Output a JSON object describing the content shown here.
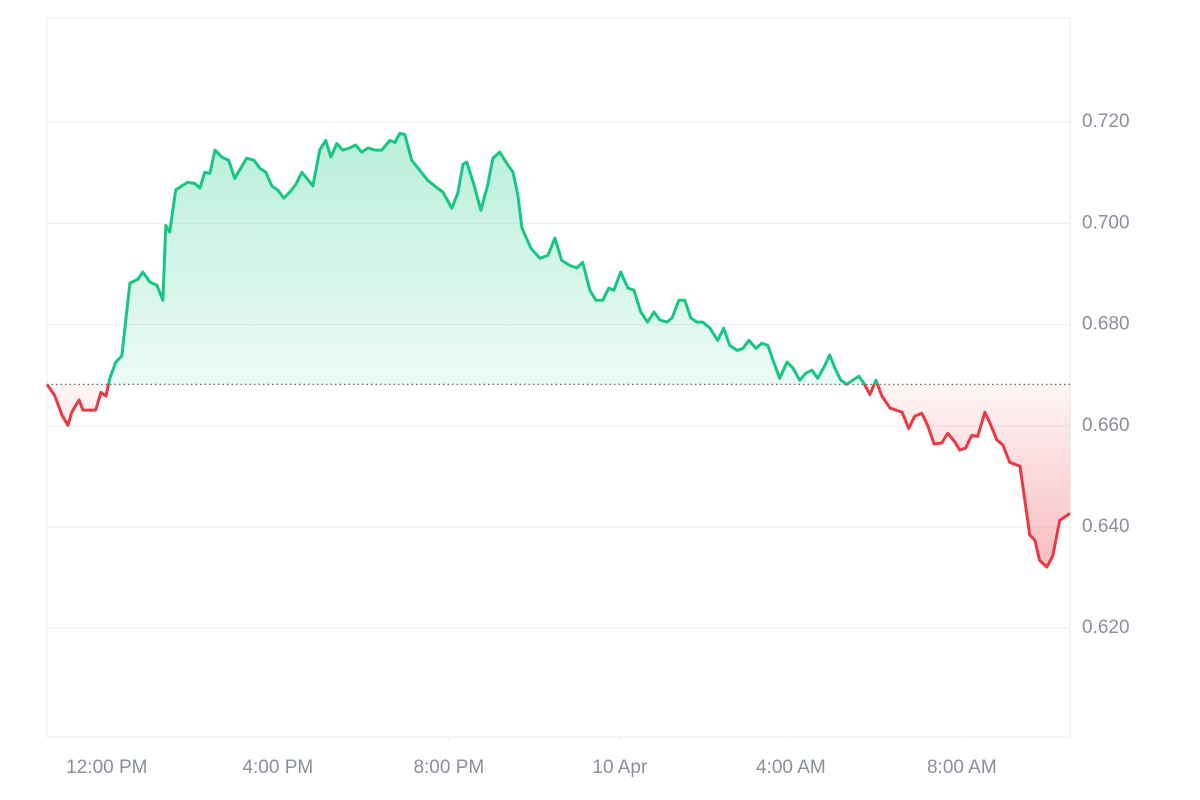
{
  "chart_data": {
    "type": "line",
    "x": [
      10.6,
      10.78,
      10.95,
      11.09,
      11.18,
      11.35,
      11.44,
      11.6,
      11.74,
      11.86,
      11.98,
      12.07,
      12.21,
      12.35,
      12.54,
      12.73,
      12.84,
      13.01,
      13.17,
      13.31,
      13.38,
      13.47,
      13.61,
      13.75,
      13.89,
      14.06,
      14.18,
      14.29,
      14.41,
      14.53,
      14.69,
      14.85,
      14.99,
      15.13,
      15.27,
      15.44,
      15.58,
      15.72,
      15.86,
      16.0,
      16.14,
      16.28,
      16.42,
      16.56,
      16.68,
      16.82,
      16.98,
      17.12,
      17.24,
      17.38,
      17.52,
      17.68,
      17.82,
      17.96,
      18.11,
      18.27,
      18.43,
      18.62,
      18.74,
      18.85,
      18.97,
      19.13,
      19.32,
      19.51,
      19.7,
      19.86,
      20.07,
      20.21,
      20.33,
      20.42,
      20.58,
      20.75,
      20.91,
      21.03,
      21.19,
      21.31,
      21.5,
      21.61,
      21.71,
      21.92,
      22.13,
      22.32,
      22.48,
      22.64,
      22.83,
      22.99,
      23.13,
      23.3,
      23.44,
      23.6,
      23.74,
      23.86,
      24.02,
      24.19,
      24.33,
      24.49,
      24.65,
      24.8,
      24.94,
      25.1,
      25.22,
      25.38,
      25.52,
      25.66,
      25.8,
      25.94,
      26.11,
      26.29,
      26.43,
      26.57,
      26.74,
      26.88,
      27.02,
      27.18,
      27.32,
      27.46,
      27.6,
      27.74,
      27.91,
      28.05,
      28.21,
      28.35,
      28.49,
      28.63,
      28.8,
      28.91,
      29.03,
      29.17,
      29.31,
      29.45,
      29.59,
      29.71,
      29.85,
      29.99,
      30.13,
      30.32,
      30.46,
      30.6,
      30.76,
      30.9,
      31.06,
      31.2,
      31.35,
      31.53,
      31.67,
      31.84,
      31.95,
      32.09,
      32.23,
      32.37,
      32.54,
      32.68,
      32.82,
      32.96,
      33.12,
      33.36,
      33.59,
      33.71,
      33.82,
      33.99,
      34.13,
      34.29,
      34.43,
      34.53
    ],
    "values": [
      0.6682,
      0.666,
      0.6621,
      0.6601,
      0.6627,
      0.6651,
      0.6631,
      0.6631,
      0.6631,
      0.6666,
      0.6659,
      0.6694,
      0.6726,
      0.6738,
      0.6882,
      0.689,
      0.6904,
      0.6884,
      0.6878,
      0.6848,
      0.6996,
      0.6983,
      0.7066,
      0.7074,
      0.7081,
      0.7079,
      0.707,
      0.7101,
      0.7099,
      0.7145,
      0.7131,
      0.7125,
      0.7089,
      0.7109,
      0.7129,
      0.7125,
      0.7109,
      0.7101,
      0.7074,
      0.7066,
      0.705,
      0.7062,
      0.7077,
      0.7101,
      0.7089,
      0.7074,
      0.7145,
      0.7164,
      0.7131,
      0.7158,
      0.7145,
      0.7149,
      0.7155,
      0.7141,
      0.7149,
      0.7145,
      0.7145,
      0.7164,
      0.716,
      0.7178,
      0.7176,
      0.7125,
      0.7105,
      0.7085,
      0.7072,
      0.7062,
      0.703,
      0.706,
      0.7117,
      0.7121,
      0.7079,
      0.7026,
      0.7076,
      0.7129,
      0.7141,
      0.7125,
      0.7101,
      0.7058,
      0.6991,
      0.6951,
      0.6931,
      0.6937,
      0.6971,
      0.6927,
      0.6917,
      0.6912,
      0.6923,
      0.6868,
      0.6848,
      0.6848,
      0.6872,
      0.6868,
      0.6904,
      0.6872,
      0.6868,
      0.6825,
      0.6805,
      0.6825,
      0.6809,
      0.6805,
      0.6813,
      0.6848,
      0.6848,
      0.6813,
      0.6805,
      0.6805,
      0.6793,
      0.6769,
      0.6793,
      0.6759,
      0.6749,
      0.6753,
      0.6769,
      0.6753,
      0.6763,
      0.6759,
      0.6726,
      0.6694,
      0.6726,
      0.6714,
      0.669,
      0.6704,
      0.671,
      0.6694,
      0.672,
      0.674,
      0.6714,
      0.669,
      0.6682,
      0.669,
      0.6698,
      0.6684,
      0.6662,
      0.669,
      0.6659,
      0.6635,
      0.6631,
      0.6627,
      0.6595,
      0.6619,
      0.6625,
      0.6601,
      0.6564,
      0.6566,
      0.6585,
      0.6568,
      0.6552,
      0.6556,
      0.6581,
      0.6579,
      0.6627,
      0.6601,
      0.6572,
      0.6562,
      0.6528,
      0.652,
      0.6384,
      0.6374,
      0.6334,
      0.6321,
      0.6344,
      0.6413,
      0.6421,
      0.6427
    ],
    "baseline": 0.6682,
    "up_color": "#16c784",
    "down_color": "#ea3943",
    "xlim": [
      10.6,
      34.53
    ],
    "xticks": [
      {
        "value": 12,
        "label": "12:00 PM"
      },
      {
        "value": 16,
        "label": "4:00 PM"
      },
      {
        "value": 20,
        "label": "8:00 PM"
      },
      {
        "value": 24,
        "label": "10 Apr"
      },
      {
        "value": 28,
        "label": "4:00 AM"
      },
      {
        "value": 32,
        "label": "8:00 AM"
      }
    ],
    "ylim": [
      0.5985,
      0.7406
    ],
    "yticks": [
      {
        "value": 0.62,
        "label": "0.620"
      },
      {
        "value": 0.64,
        "label": "0.640"
      },
      {
        "value": 0.66,
        "label": "0.660"
      },
      {
        "value": 0.68,
        "label": "0.680"
      },
      {
        "value": 0.7,
        "label": "0.700"
      },
      {
        "value": 0.72,
        "label": "0.720"
      }
    ],
    "grid": true
  }
}
